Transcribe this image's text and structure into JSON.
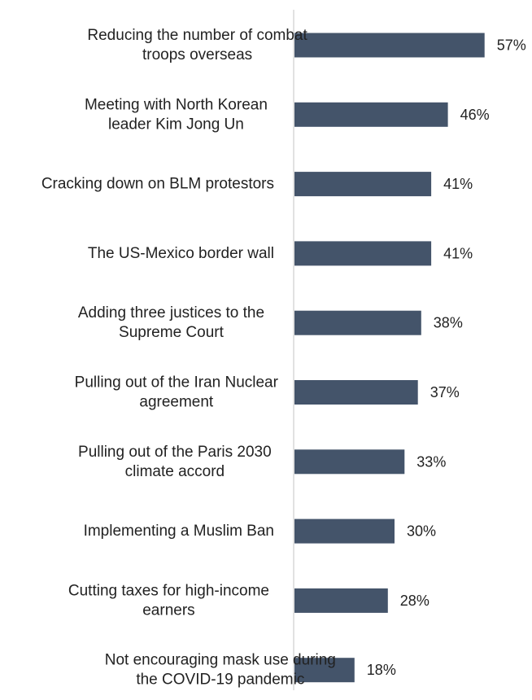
{
  "chart_data": {
    "type": "bar",
    "orientation": "horizontal",
    "title": "",
    "xlabel": "",
    "ylabel": "",
    "xlim": [
      0,
      100
    ],
    "grid": false,
    "legend": "none",
    "bar_color": "#44546a",
    "axis_color": "#d9d9d9",
    "value_format": "percent",
    "categories": [
      [
        "Reducing the number of combat",
        "troops overseas"
      ],
      [
        "Meeting with North Korean",
        "leader Kim Jong Un"
      ],
      [
        "Cracking down on BLM protestors"
      ],
      [
        "The US-Mexico border wall"
      ],
      [
        "Adding three justices to the",
        "Supreme Court"
      ],
      [
        "Pulling out of the Iran Nuclear",
        "agreement"
      ],
      [
        "Pulling out of the Paris 2030",
        "climate accord"
      ],
      [
        "Implementing a Muslim Ban"
      ],
      [
        "Cutting taxes for high-income",
        "earners"
      ],
      [
        "Not encouraging mask use during",
        "the COVID-19 pandemic"
      ]
    ],
    "values": [
      57,
      46,
      41,
      41,
      38,
      37,
      33,
      30,
      28,
      18
    ],
    "value_labels": [
      "57%",
      "46%",
      "41%",
      "41%",
      "38%",
      "37%",
      "33%",
      "30%",
      "28%",
      "18%"
    ]
  }
}
